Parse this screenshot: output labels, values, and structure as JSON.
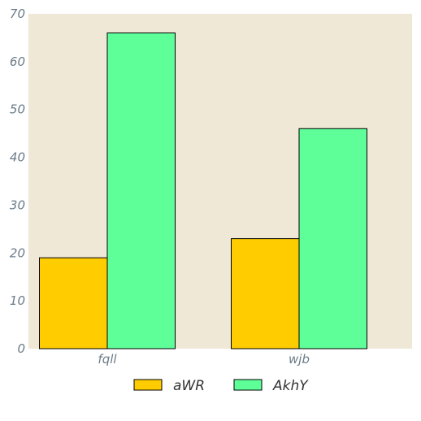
{
  "chart_data": {
    "type": "bar",
    "categories": [
      "fqll",
      "wjb"
    ],
    "series": [
      {
        "name": "aWR",
        "values": [
          19,
          23
        ],
        "color": "#ffcc00"
      },
      {
        "name": "AkhY",
        "values": [
          66,
          46
        ],
        "color": "#5eff99"
      }
    ],
    "ylim": [
      0,
      70
    ],
    "yticks": [
      0,
      10,
      20,
      30,
      40,
      50,
      60,
      70
    ],
    "grid": false,
    "legend_position": "bottom",
    "background_color": "#efe8d7",
    "title": "",
    "xlabel": "",
    "ylabel": ""
  }
}
